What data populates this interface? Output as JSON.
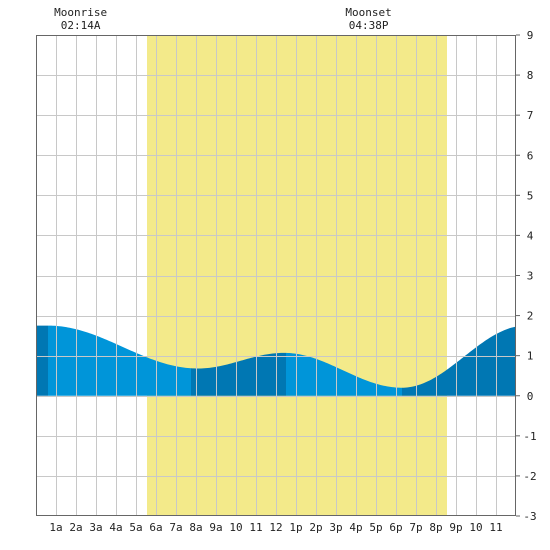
{
  "chart_data": {
    "type": "area",
    "title": "",
    "xlabel": "",
    "ylabel": "",
    "x_range_hours": [
      0,
      24
    ],
    "ylim": [
      -3,
      9
    ],
    "y_ticks": [
      -3,
      -2,
      -1,
      0,
      1,
      2,
      3,
      4,
      5,
      6,
      7,
      8,
      9
    ],
    "x_ticks": [
      {
        "hour": 1,
        "label": "1a"
      },
      {
        "hour": 2,
        "label": "2a"
      },
      {
        "hour": 3,
        "label": "3a"
      },
      {
        "hour": 4,
        "label": "4a"
      },
      {
        "hour": 5,
        "label": "5a"
      },
      {
        "hour": 6,
        "label": "6a"
      },
      {
        "hour": 7,
        "label": "7a"
      },
      {
        "hour": 8,
        "label": "8a"
      },
      {
        "hour": 9,
        "label": "9a"
      },
      {
        "hour": 10,
        "label": "10"
      },
      {
        "hour": 11,
        "label": "11"
      },
      {
        "hour": 12,
        "label": "12"
      },
      {
        "hour": 13,
        "label": "1p"
      },
      {
        "hour": 14,
        "label": "2p"
      },
      {
        "hour": 15,
        "label": "3p"
      },
      {
        "hour": 16,
        "label": "4p"
      },
      {
        "hour": 17,
        "label": "5p"
      },
      {
        "hour": 18,
        "label": "6p"
      },
      {
        "hour": 19,
        "label": "7p"
      },
      {
        "hour": 20,
        "label": "8p"
      },
      {
        "hour": 21,
        "label": "9p"
      },
      {
        "hour": 22,
        "label": "10"
      },
      {
        "hour": 23,
        "label": "11"
      }
    ],
    "daylight_hours": [
      5.55,
      20.55
    ],
    "tide_extremes": [
      {
        "hour": 0.6,
        "height": 1.75
      },
      {
        "hour": 8.1,
        "height": 0.68
      },
      {
        "hour": 12.4,
        "height": 1.07
      },
      {
        "hour": 18.3,
        "height": 0.2
      },
      {
        "hour": 24.5,
        "height": 1.75
      }
    ],
    "shade_boundaries_hours": [
      0.6,
      7.75,
      12.5,
      18.3
    ],
    "grid": true,
    "colors": {
      "daylight": "#f3ea8a",
      "tide_light": "#0095d9",
      "tide_dark": "#0077b3",
      "grid": "#c8c8c8",
      "axis": "#666666"
    },
    "moon_events": [
      {
        "label": "Moonrise",
        "time": "02:14A",
        "hour": 2.23
      },
      {
        "label": "Moonset",
        "time": "04:38P",
        "hour": 16.63
      }
    ]
  }
}
